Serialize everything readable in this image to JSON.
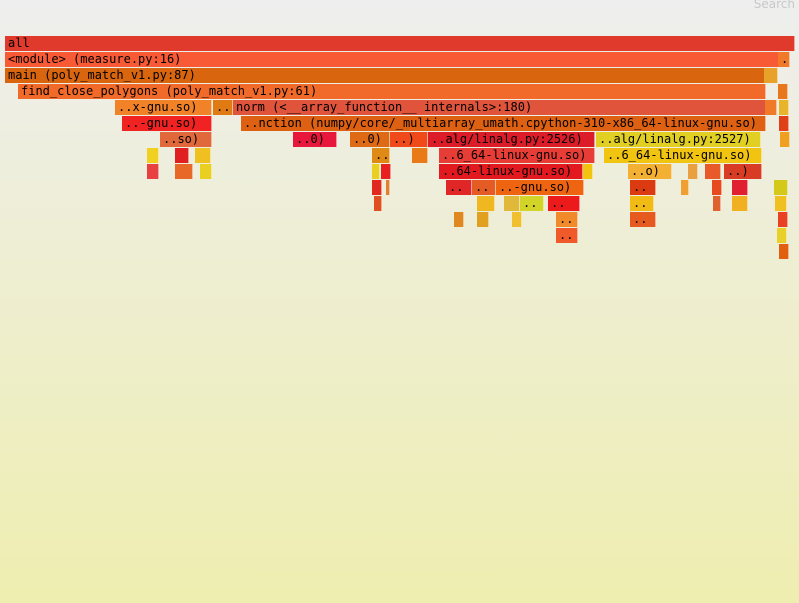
{
  "search_label": "Search",
  "frames": [
    {
      "label": "all",
      "color": "#e03a2c"
    },
    {
      "label": "<module> (measure.py:16)",
      "color": "#f75a34"
    },
    {
      "label": "main (poly_match_v1.py:87)",
      "color": "#d9660f"
    },
    {
      "label": "find_close_polygons (poly_match_v1.py:61)",
      "color": "#f26a2a"
    },
    {
      "label": "..x-gnu.so)",
      "color": "#f28228"
    },
    {
      "label": "..",
      "color": "#e07a12"
    },
    {
      "label": "norm (<__array_function__ internals>:180)",
      "color": "#e0543c"
    },
    {
      "label": "..-gnu.so)",
      "color": "#f02222"
    },
    {
      "label": "..nction (numpy/core/_multiarray_umath.cpython-310-x86_64-linux-gnu.so)",
      "color": "#de6012"
    },
    {
      "label": "..so)",
      "color": "#e0683a"
    },
    {
      "label": "..0)",
      "color": "#e8183c"
    },
    {
      "label": "..0)",
      "color": "#df6a16"
    },
    {
      "label": "..)",
      "color": "#f04a1a"
    },
    {
      "label": "..alg/linalg.py:2526)",
      "color": "#dc1c28"
    },
    {
      "label": "..alg/linalg.py:2527)",
      "color": "#e2cf24"
    },
    {
      "label": "..",
      "color": "#e08a16"
    },
    {
      "label": "..6_64-linux-gnu.so)",
      "color": "#e83c36"
    },
    {
      "label": "..6_64-linux-gnu.so)",
      "color": "#f2c412"
    },
    {
      "label": "..64-linux-gnu.so)",
      "color": "#e21a20"
    },
    {
      "label": "..o)",
      "color": "#f4b032"
    },
    {
      "label": "..)",
      "color": "#d83c24"
    },
    {
      "label": "..",
      "color": "#e02626"
    },
    {
      "label": "..",
      "color": "#e45c24"
    },
    {
      "label": "..-gnu.so)",
      "color": "#ee6410"
    },
    {
      "label": "..",
      "color": "#dc3a10"
    },
    {
      "label": "..",
      "color": "#d2d428"
    },
    {
      "label": "..",
      "color": "#ec1a1a"
    },
    {
      "label": "..",
      "color": "#f2ba14"
    },
    {
      "label": "..",
      "color": "#f08a2a"
    },
    {
      "label": "..",
      "color": "#e65a20"
    },
    {
      "label": "..",
      "color": "#f05a2a"
    },
    {
      "label": "..",
      "color": "#f07a2a"
    },
    {
      "label": "",
      "color": "#e8a22a"
    },
    {
      "label": "",
      "color": "#e7761c"
    },
    {
      "label": "",
      "color": "#f07a2a"
    },
    {
      "label": "",
      "color": "#e8b42a"
    },
    {
      "label": "",
      "color": "#e04018"
    },
    {
      "label": "",
      "color": "#f0a020"
    },
    {
      "label": "",
      "color": "#f0d020"
    },
    {
      "label": "",
      "color": "#e02020"
    },
    {
      "label": "",
      "color": "#f0c020"
    },
    {
      "label": "",
      "color": "#e87a18"
    },
    {
      "label": "",
      "color": "#e84040"
    },
    {
      "label": "",
      "color": "#e86828"
    },
    {
      "label": "",
      "color": "#e8cf20"
    },
    {
      "label": "",
      "color": "#e8cf20"
    },
    {
      "label": "",
      "color": "#e82020"
    },
    {
      "label": "",
      "color": "#f2c412"
    },
    {
      "label": "",
      "color": "#e8a040"
    },
    {
      "label": "",
      "color": "#e85a28"
    },
    {
      "label": "",
      "color": "#e02a20"
    },
    {
      "label": "",
      "color": "#e08030"
    },
    {
      "label": "",
      "color": "#f0a030"
    },
    {
      "label": "",
      "color": "#e84a20"
    },
    {
      "label": "",
      "color": "#e02030"
    },
    {
      "label": "",
      "color": "#d4c818"
    },
    {
      "label": "",
      "color": "#e04f20"
    },
    {
      "label": "",
      "color": "#f0b820"
    },
    {
      "label": "",
      "color": "#e0b83a"
    },
    {
      "label": "",
      "color": "#e06030"
    },
    {
      "label": "",
      "color": "#f0b020"
    },
    {
      "label": "",
      "color": "#f0c020"
    },
    {
      "label": "",
      "color": "#e08820"
    },
    {
      "label": "",
      "color": "#e0a020"
    },
    {
      "label": "",
      "color": "#f0c030"
    },
    {
      "label": "",
      "color": "#e84020"
    },
    {
      "label": "",
      "color": "#e8d028"
    },
    {
      "label": "",
      "color": "#e06010"
    }
  ]
}
